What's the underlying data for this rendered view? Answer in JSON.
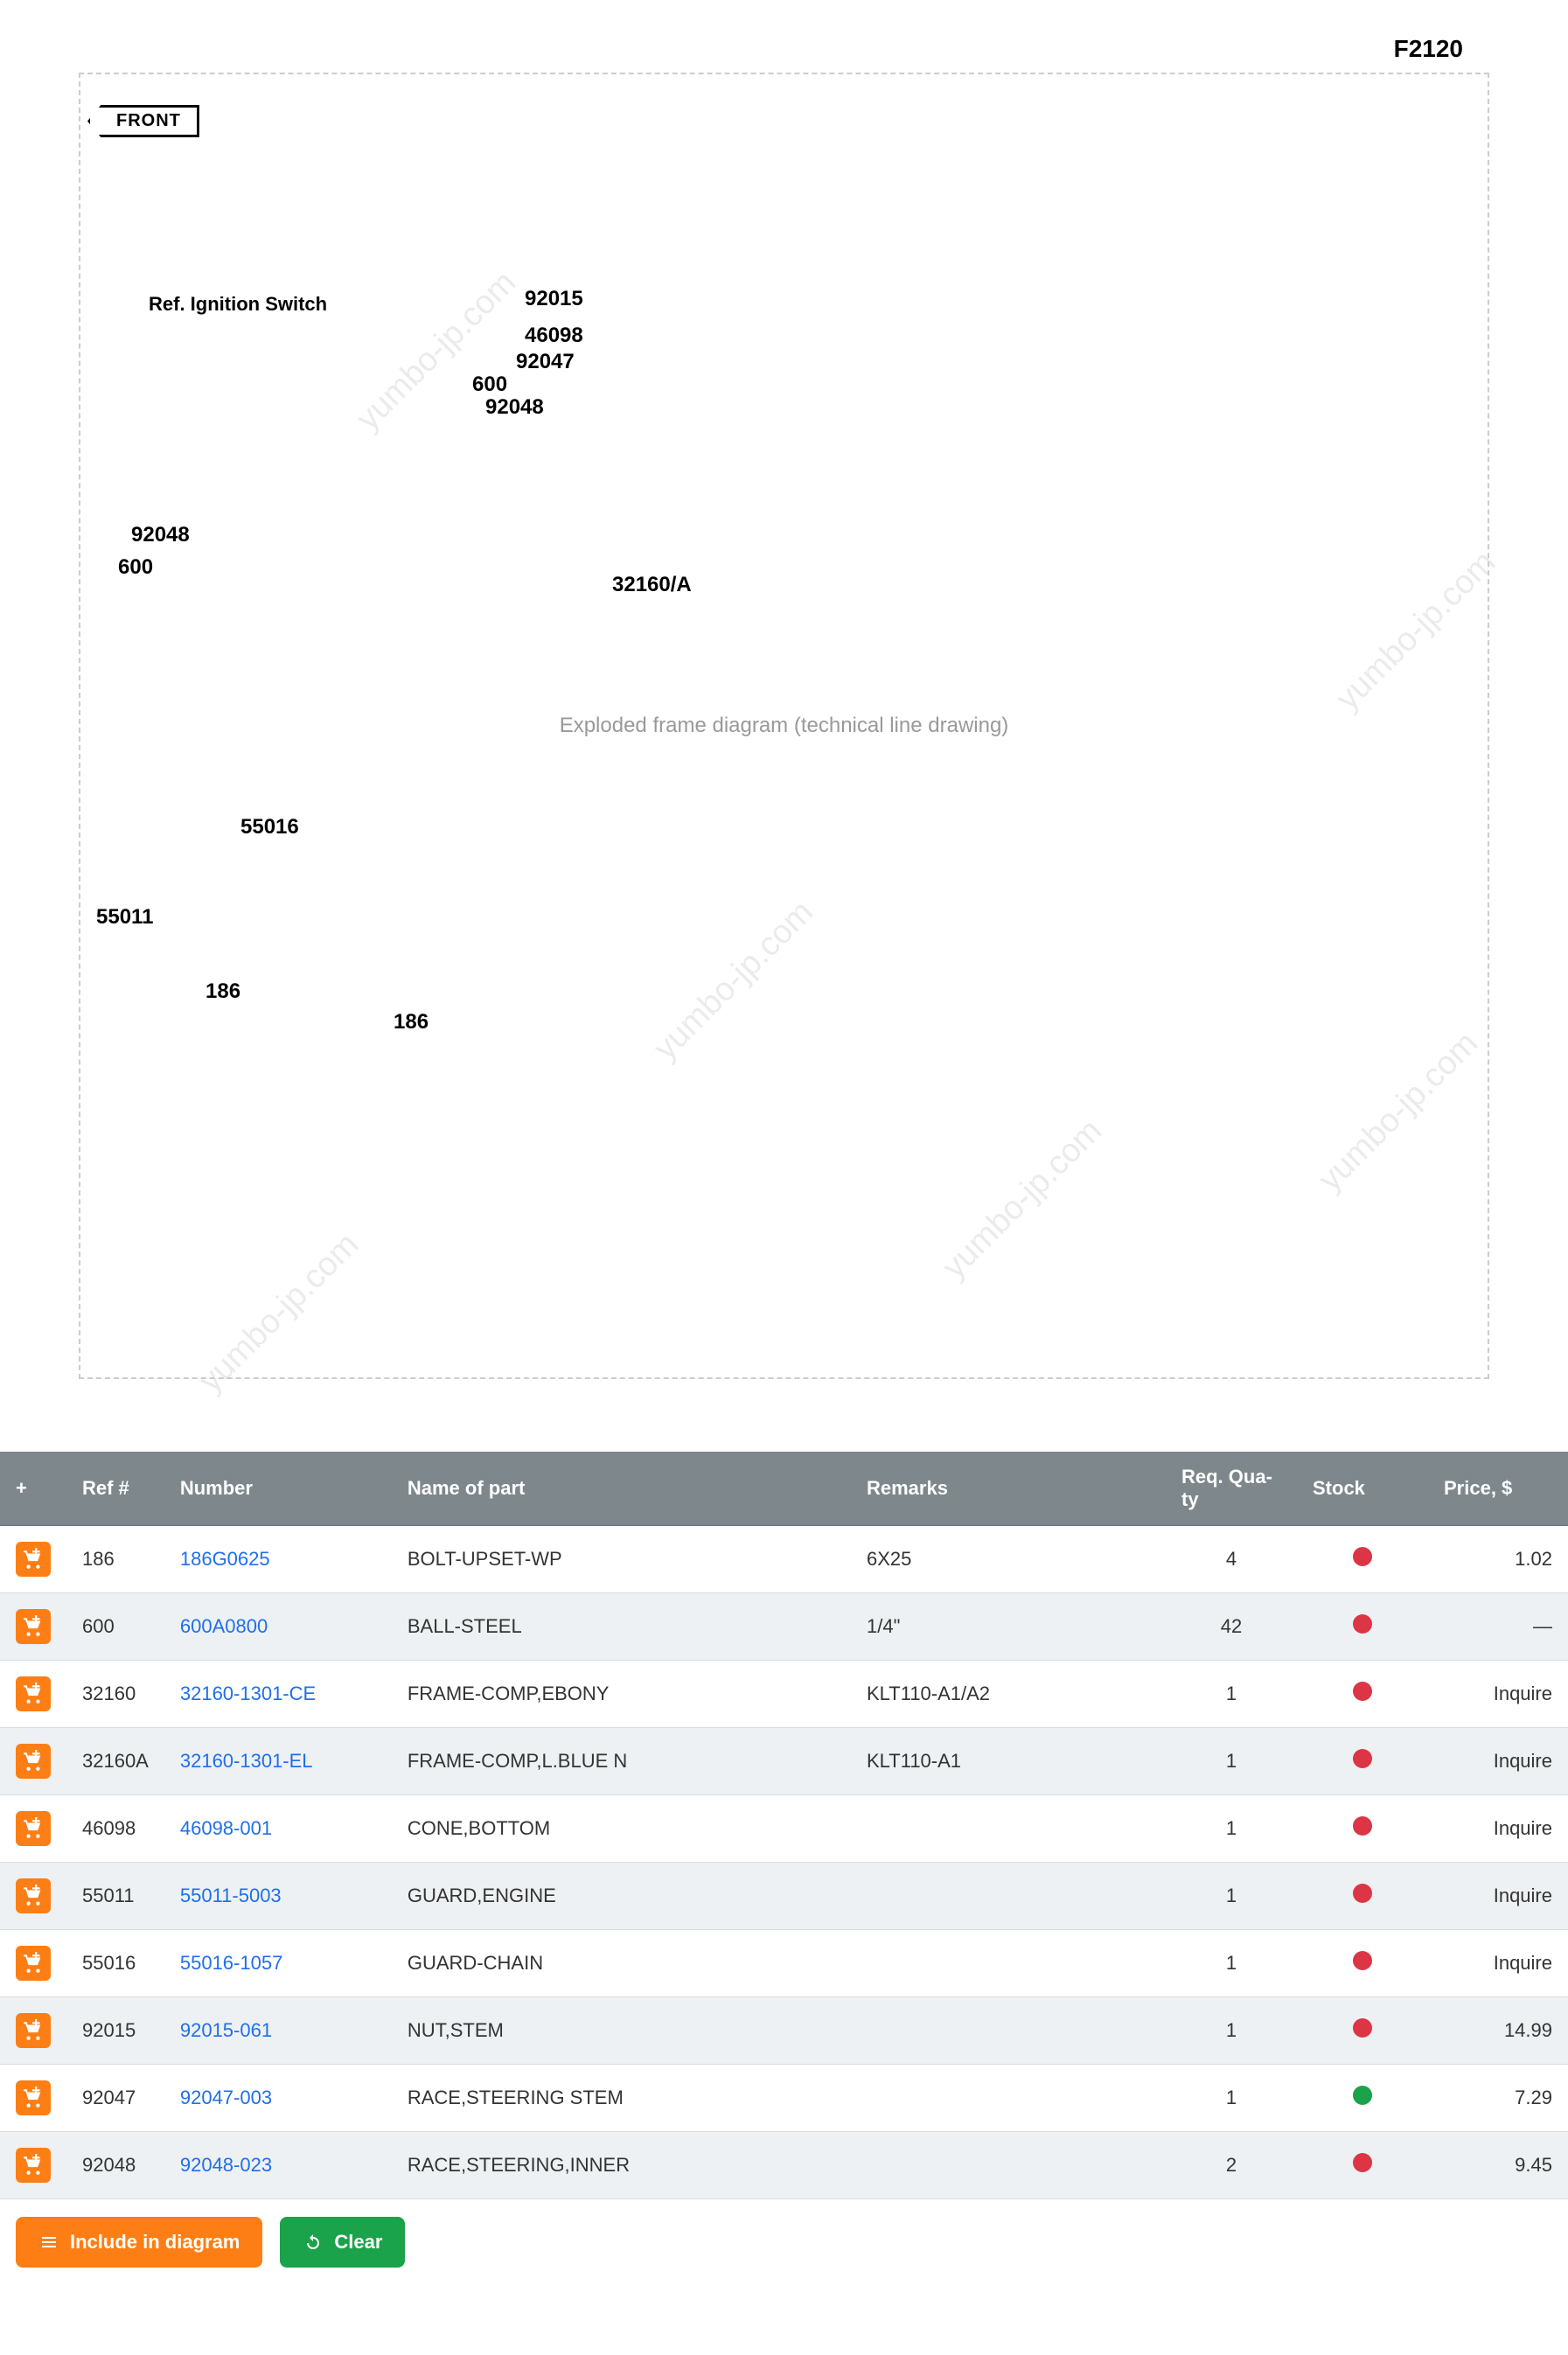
{
  "diagram": {
    "code_label": "F2120",
    "front_badge": "FRONT",
    "ref_box_label": "Ref. Ignition Switch",
    "callouts": [
      "92015",
      "46098",
      "92047",
      "600",
      "92048",
      "92048",
      "600",
      "32160/A",
      "55016",
      "55011",
      "186",
      "186"
    ],
    "watermark_text": "yumbo-jp.com",
    "placeholder_text": "Exploded frame diagram (technical line drawing)"
  },
  "table": {
    "headers": {
      "add": "+",
      "ref": "Ref #",
      "number": "Number",
      "name": "Name of part",
      "remarks": "Remarks",
      "req": "Req. Qua-ty",
      "stock": "Stock",
      "price": "Price, $"
    },
    "rows": [
      {
        "ref": "186",
        "number": "186G0625",
        "name": "BOLT-UPSET-WP",
        "remarks": "6X25",
        "req": "4",
        "stock_color": "#dc3545",
        "price": "1.02"
      },
      {
        "ref": "600",
        "number": "600A0800",
        "name": "BALL-STEEL",
        "remarks": "1/4\"",
        "req": "42",
        "stock_color": "#dc3545",
        "price": "—"
      },
      {
        "ref": "32160",
        "number": "32160-1301-CE",
        "name": "FRAME-COMP,EBONY",
        "remarks": "KLT110-A1/A2",
        "req": "1",
        "stock_color": "#dc3545",
        "price": "Inquire"
      },
      {
        "ref": "32160A",
        "number": "32160-1301-EL",
        "name": "FRAME-COMP,L.BLUE N",
        "remarks": "KLT110-A1",
        "req": "1",
        "stock_color": "#dc3545",
        "price": "Inquire"
      },
      {
        "ref": "46098",
        "number": "46098-001",
        "name": "CONE,BOTTOM",
        "remarks": "",
        "req": "1",
        "stock_color": "#dc3545",
        "price": "Inquire"
      },
      {
        "ref": "55011",
        "number": "55011-5003",
        "name": "GUARD,ENGINE",
        "remarks": "",
        "req": "1",
        "stock_color": "#dc3545",
        "price": "Inquire"
      },
      {
        "ref": "55016",
        "number": "55016-1057",
        "name": "GUARD-CHAIN",
        "remarks": "",
        "req": "1",
        "stock_color": "#dc3545",
        "price": "Inquire"
      },
      {
        "ref": "92015",
        "number": "92015-061",
        "name": "NUT,STEM",
        "remarks": "",
        "req": "1",
        "stock_color": "#dc3545",
        "price": "14.99"
      },
      {
        "ref": "92047",
        "number": "92047-003",
        "name": "RACE,STEERING STEM",
        "remarks": "",
        "req": "1",
        "stock_color": "#1aa34a",
        "price": "7.29"
      },
      {
        "ref": "92048",
        "number": "92048-023",
        "name": "RACE,STEERING,INNER",
        "remarks": "",
        "req": "2",
        "stock_color": "#dc3545",
        "price": "9.45"
      }
    ]
  },
  "actions": {
    "include": "Include in diagram",
    "clear": "Clear"
  }
}
